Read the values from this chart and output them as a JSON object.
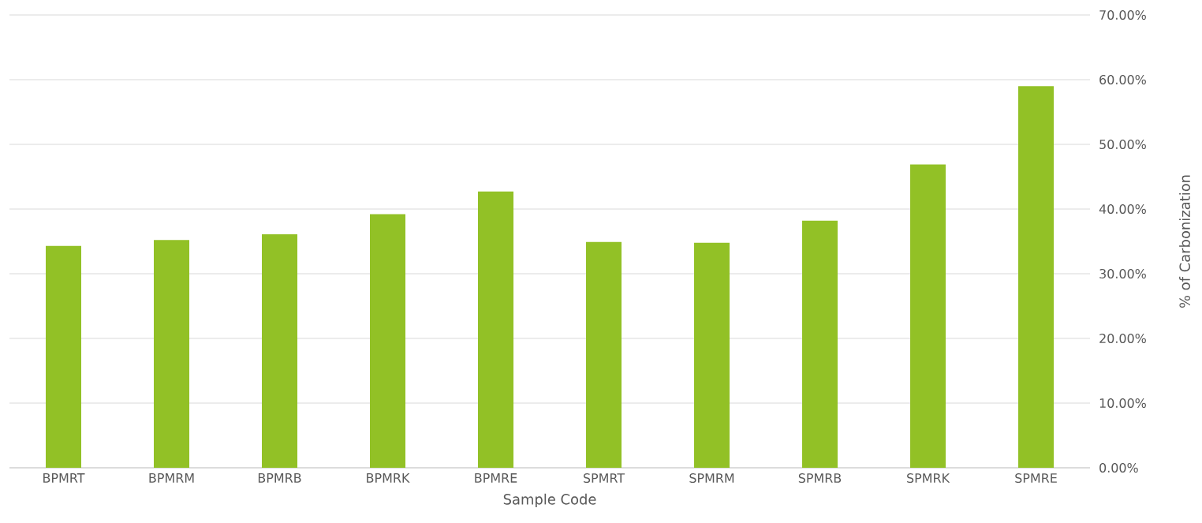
{
  "chart_data": {
    "type": "bar",
    "xlabel": "Sample Code",
    "ylabel": "% of Carbonization",
    "categories": [
      "BPMRT",
      "BPMRM",
      "BPMRB",
      "BPMRK",
      "BPMRE",
      "SPMRT",
      "SPMRM",
      "SPMRB",
      "SPMRK",
      "SPMRE"
    ],
    "values": [
      34.3,
      35.2,
      36.1,
      39.2,
      42.7,
      34.9,
      34.8,
      38.2,
      46.9,
      59.0
    ],
    "color": "#92c126",
    "ylim": [
      0,
      70
    ],
    "yticks": [
      {
        "value": 0,
        "label": "0.00%"
      },
      {
        "value": 10,
        "label": "10.00%"
      },
      {
        "value": 20,
        "label": "20.00%"
      },
      {
        "value": 30,
        "label": "30.00%"
      },
      {
        "value": 40,
        "label": "40.00%"
      },
      {
        "value": 50,
        "label": "50.00%"
      },
      {
        "value": 60,
        "label": "60.00%"
      },
      {
        "value": 70,
        "label": "70.00%"
      }
    ],
    "grid": "y"
  }
}
